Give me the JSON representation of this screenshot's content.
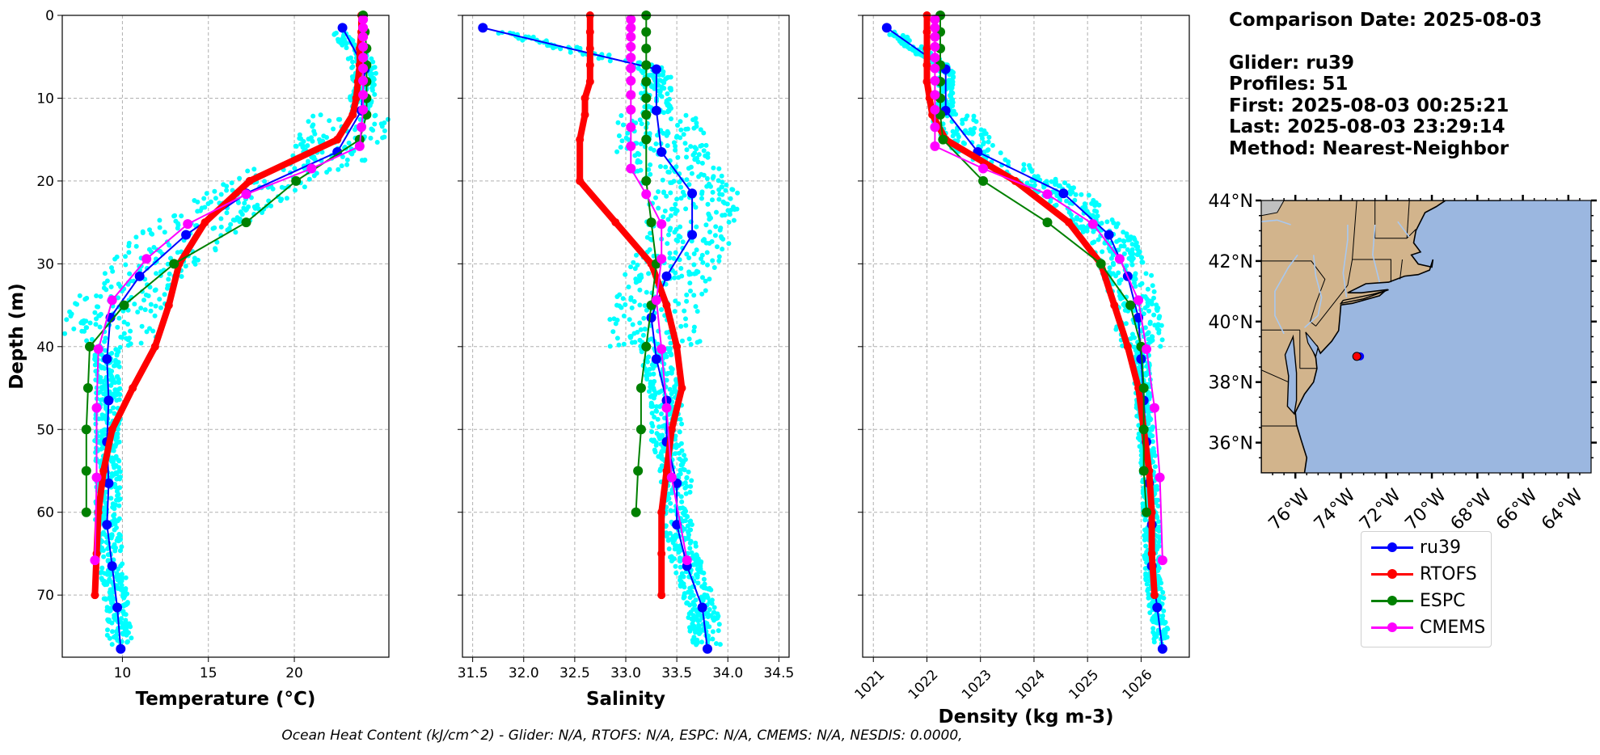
{
  "info": {
    "comparison_date": "Comparison Date: 2025-08-03",
    "glider": "Glider: ru39",
    "profiles": "Profiles: 51",
    "first": "First: 2025-08-03 00:25:21",
    "last": "Last: 2025-08-03 23:29:14",
    "method": "Method: Nearest-Neighbor"
  },
  "footnote": "Ocean Heat Content (kJ/cm^2) - Glider: N/A,  RTOFS: N/A,  ESPC: N/A,  CMEMS: N/A,  NESDIS: 0.0000,",
  "colors": {
    "ru39": "#0000ff",
    "RTOFS": "#ff0000",
    "ESPC": "#008000",
    "CMEMS": "#ff00ff",
    "scatter": "#00ffff",
    "land": "#d2b48c",
    "ocean": "#9bb7e0"
  },
  "legend": [
    "ru39",
    "RTOFS",
    "ESPC",
    "CMEMS"
  ],
  "chart_data": [
    {
      "type": "line",
      "title": "",
      "xlabel": "Temperature (°C)",
      "ylabel": "Depth (m)",
      "xlim": [
        6.5,
        25.5
      ],
      "ylim": [
        77.5,
        0
      ],
      "xticks": [
        10,
        15,
        20
      ],
      "yticks": [
        0,
        10,
        20,
        30,
        40,
        50,
        60,
        70
      ],
      "grid": true,
      "scatter_note": "glider raw profile points (cyan)",
      "series": [
        {
          "name": "ru39",
          "depth": [
            1.5,
            6.5,
            11.5,
            16.5,
            21.5,
            26.5,
            31.5,
            36.5,
            41.5,
            46.5,
            51.5,
            56.5,
            61.5,
            66.5,
            71.5,
            76.5
          ],
          "values": [
            22.8,
            24.1,
            23.9,
            22.5,
            17.2,
            13.7,
            11.0,
            9.3,
            9.1,
            9.2,
            9.1,
            9.2,
            9.1,
            9.4,
            9.7,
            9.9
          ]
        },
        {
          "name": "RTOFS",
          "depth": [
            0,
            2,
            4,
            6,
            8,
            10,
            12,
            15,
            20,
            25,
            30,
            35,
            40,
            45,
            50,
            55,
            60,
            65,
            70
          ],
          "values": [
            23.9,
            23.9,
            23.8,
            23.8,
            23.7,
            23.6,
            23.4,
            22.5,
            17.4,
            14.8,
            13.3,
            12.7,
            11.9,
            10.6,
            9.4,
            8.9,
            8.6,
            8.5,
            8.4
          ]
        },
        {
          "name": "ESPC",
          "depth": [
            0,
            2,
            4,
            6,
            8,
            10,
            12,
            15,
            20,
            25,
            30,
            35,
            40,
            45,
            50,
            55,
            60
          ],
          "values": [
            24.0,
            24.1,
            24.2,
            24.2,
            24.2,
            24.2,
            24.2,
            23.8,
            20.1,
            17.2,
            13.0,
            10.1,
            8.1,
            8.0,
            7.9,
            7.9,
            7.9
          ]
        },
        {
          "name": "CMEMS",
          "depth": [
            0.5,
            1.5,
            2.6,
            3.8,
            5.1,
            6.4,
            7.9,
            9.6,
            11.4,
            13.5,
            15.8,
            18.5,
            21.6,
            25.2,
            29.4,
            34.4,
            40.3,
            47.4,
            55.8,
            65.8
          ],
          "values": [
            24.0,
            24.0,
            24.0,
            24.0,
            24.0,
            24.0,
            24.0,
            24.0,
            24.0,
            23.9,
            23.8,
            21.0,
            17.2,
            13.8,
            11.4,
            9.4,
            8.6,
            8.5,
            8.5,
            8.4
          ]
        }
      ]
    },
    {
      "type": "line",
      "title": "",
      "xlabel": "Salinity",
      "ylabel": "",
      "xlim": [
        31.4,
        34.6
      ],
      "ylim": [
        77.5,
        0
      ],
      "xticks": [
        31.5,
        32.0,
        32.5,
        33.0,
        33.5,
        34.0,
        34.5
      ],
      "yticks": [
        0,
        10,
        20,
        30,
        40,
        50,
        60,
        70
      ],
      "grid": true,
      "series": [
        {
          "name": "ru39",
          "depth": [
            1.5,
            6.5,
            11.5,
            16.5,
            21.5,
            26.5,
            31.5,
            36.5,
            41.5,
            46.5,
            51.5,
            56.5,
            61.5,
            66.5,
            71.5,
            76.5
          ],
          "values": [
            31.6,
            33.3,
            33.3,
            33.35,
            33.65,
            33.65,
            33.4,
            33.25,
            33.3,
            33.4,
            33.4,
            33.5,
            33.5,
            33.6,
            33.75,
            33.8
          ]
        },
        {
          "name": "RTOFS",
          "depth": [
            0,
            2,
            4,
            6,
            8,
            10,
            12,
            15,
            20,
            25,
            30,
            35,
            40,
            45,
            50,
            55,
            60,
            65,
            70
          ],
          "values": [
            32.65,
            32.65,
            32.65,
            32.65,
            32.65,
            32.6,
            32.6,
            32.55,
            32.55,
            32.9,
            33.25,
            33.4,
            33.5,
            33.55,
            33.45,
            33.4,
            33.35,
            33.35,
            33.35
          ]
        },
        {
          "name": "ESPC",
          "depth": [
            0,
            2,
            4,
            6,
            8,
            10,
            12,
            15,
            20,
            25,
            30,
            35,
            40,
            45,
            50,
            55,
            60
          ],
          "values": [
            33.2,
            33.2,
            33.2,
            33.2,
            33.2,
            33.2,
            33.2,
            33.2,
            33.2,
            33.25,
            33.3,
            33.25,
            33.2,
            33.15,
            33.15,
            33.12,
            33.1
          ]
        },
        {
          "name": "CMEMS",
          "depth": [
            0.5,
            1.5,
            2.6,
            3.8,
            5.1,
            6.4,
            7.9,
            9.6,
            11.4,
            13.5,
            15.8,
            18.5,
            21.6,
            25.2,
            29.4,
            34.4,
            40.3,
            47.4,
            55.8,
            65.8
          ],
          "values": [
            33.05,
            33.05,
            33.05,
            33.05,
            33.05,
            33.05,
            33.05,
            33.05,
            33.05,
            33.05,
            33.05,
            33.05,
            33.2,
            33.35,
            33.35,
            33.3,
            33.35,
            33.4,
            33.45,
            33.6
          ]
        }
      ]
    },
    {
      "type": "line",
      "title": "",
      "xlabel": "Density (kg m-3)",
      "ylabel": "",
      "xlim": [
        1020.8,
        1026.9
      ],
      "ylim": [
        77.5,
        0
      ],
      "xticks": [
        1021,
        1022,
        1023,
        1024,
        1025,
        1026
      ],
      "yticks": [
        0,
        10,
        20,
        30,
        40,
        50,
        60,
        70
      ],
      "grid": true,
      "series": [
        {
          "name": "ru39",
          "depth": [
            1.5,
            6.5,
            11.5,
            16.5,
            21.5,
            26.5,
            31.5,
            36.5,
            41.5,
            46.5,
            51.5,
            56.5,
            61.5,
            66.5,
            71.5,
            76.5
          ],
          "values": [
            1021.25,
            1022.35,
            1022.35,
            1022.95,
            1024.55,
            1025.4,
            1025.75,
            1025.95,
            1026.0,
            1026.05,
            1026.1,
            1026.15,
            1026.2,
            1026.2,
            1026.3,
            1026.4
          ]
        },
        {
          "name": "RTOFS",
          "depth": [
            0,
            2,
            4,
            6,
            8,
            10,
            12,
            15,
            20,
            25,
            30,
            35,
            40,
            45,
            50,
            55,
            60,
            65,
            70
          ],
          "values": [
            1022.0,
            1022.0,
            1022.0,
            1022.0,
            1022.0,
            1022.05,
            1022.1,
            1022.35,
            1023.65,
            1024.65,
            1025.25,
            1025.5,
            1025.75,
            1025.95,
            1026.05,
            1026.15,
            1026.2,
            1026.2,
            1026.25
          ]
        },
        {
          "name": "ESPC",
          "depth": [
            0,
            2,
            4,
            6,
            8,
            10,
            12,
            15,
            20,
            25,
            30,
            35,
            40,
            45,
            50,
            55,
            60
          ],
          "values": [
            1022.25,
            1022.25,
            1022.25,
            1022.25,
            1022.25,
            1022.25,
            1022.25,
            1022.3,
            1023.05,
            1024.25,
            1025.25,
            1025.8,
            1026.0,
            1026.05,
            1026.05,
            1026.05,
            1026.1
          ]
        },
        {
          "name": "CMEMS",
          "depth": [
            0.5,
            1.5,
            2.6,
            3.8,
            5.1,
            6.4,
            7.9,
            9.6,
            11.4,
            13.5,
            15.8,
            18.5,
            21.6,
            25.2,
            29.4,
            34.4,
            40.3,
            47.4,
            55.8,
            65.8
          ],
          "values": [
            1022.15,
            1022.15,
            1022.15,
            1022.15,
            1022.15,
            1022.15,
            1022.15,
            1022.15,
            1022.15,
            1022.15,
            1022.15,
            1023.05,
            1024.25,
            1025.1,
            1025.6,
            1025.95,
            1026.1,
            1026.25,
            1026.35,
            1026.4
          ]
        }
      ]
    },
    {
      "type": "map",
      "xlabel": "",
      "ylabel": "",
      "lon_range": [
        -77.5,
        -63.0
      ],
      "lat_range": [
        35.0,
        44.0
      ],
      "xtick_labels": [
        "76°W",
        "74°W",
        "72°W",
        "70°W",
        "68°W",
        "66°W",
        "64°W"
      ],
      "xticks": [
        -76,
        -74,
        -72,
        -70,
        -68,
        -66,
        -64
      ],
      "ytick_labels": [
        "36°N",
        "38°N",
        "40°N",
        "42°N",
        "44°N"
      ],
      "yticks": [
        36,
        38,
        40,
        42,
        44
      ],
      "markers": [
        {
          "name": "ru39 / RTOFS location",
          "lon": -73.3,
          "lat": 38.85
        }
      ]
    }
  ]
}
